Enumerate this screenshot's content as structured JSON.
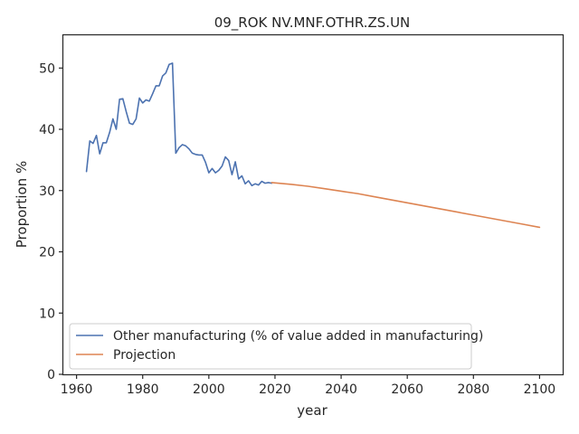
{
  "chart_data": {
    "type": "line",
    "title": "09_ROK NV.MNF.OTHR.ZS.UN",
    "xlabel": "year",
    "ylabel": "Proportion %",
    "xlim": [
      1956,
      2107
    ],
    "ylim": [
      0,
      55.5
    ],
    "xticks": [
      1960,
      1980,
      2000,
      2020,
      2040,
      2060,
      2080,
      2100
    ],
    "yticks": [
      0,
      10,
      20,
      30,
      40,
      50
    ],
    "grid": false,
    "legend_position": "lower-left",
    "colors": {
      "series_0": "#4c72b0",
      "series_1": "#dd8452",
      "axis": "#262626"
    },
    "series": [
      {
        "name": "Other manufacturing (% of value added in manufacturing)",
        "x": [
          1963,
          1964,
          1965,
          1966,
          1967,
          1968,
          1969,
          1970,
          1971,
          1972,
          1973,
          1974,
          1975,
          1976,
          1977,
          1978,
          1979,
          1980,
          1981,
          1982,
          1983,
          1984,
          1985,
          1986,
          1987,
          1988,
          1989,
          1990,
          1991,
          1992,
          1993,
          1994,
          1995,
          1996,
          1997,
          1998,
          1999,
          2000,
          2001,
          2002,
          2003,
          2004,
          2005,
          2006,
          2007,
          2008,
          2009,
          2010,
          2011,
          2012,
          2013,
          2014,
          2015,
          2016,
          2017,
          2018,
          2019
        ],
        "y": [
          33.1,
          38.1,
          37.7,
          39.0,
          36.0,
          37.8,
          37.8,
          39.5,
          41.7,
          40.0,
          44.9,
          45.0,
          42.9,
          41.0,
          40.8,
          41.7,
          45.1,
          44.3,
          44.8,
          44.6,
          45.8,
          47.1,
          47.1,
          48.7,
          49.2,
          50.6,
          50.8,
          36.1,
          37.0,
          37.5,
          37.3,
          36.8,
          36.1,
          35.9,
          35.8,
          35.8,
          34.6,
          32.9,
          33.6,
          32.9,
          33.3,
          34.0,
          35.5,
          34.9,
          32.6,
          34.7,
          31.9,
          32.4,
          31.1,
          31.6,
          30.8,
          31.1,
          30.9,
          31.5,
          31.2,
          31.3,
          31.2
        ]
      },
      {
        "name": "Projection",
        "x": [
          2019,
          2025,
          2030,
          2035,
          2040,
          2045,
          2050,
          2055,
          2060,
          2065,
          2070,
          2075,
          2080,
          2085,
          2090,
          2095,
          2100
        ],
        "y": [
          31.3,
          31.0,
          30.7,
          30.3,
          29.9,
          29.5,
          29.0,
          28.5,
          28.0,
          27.5,
          27.0,
          26.5,
          26.0,
          25.5,
          25.0,
          24.5,
          24.0
        ]
      }
    ]
  }
}
